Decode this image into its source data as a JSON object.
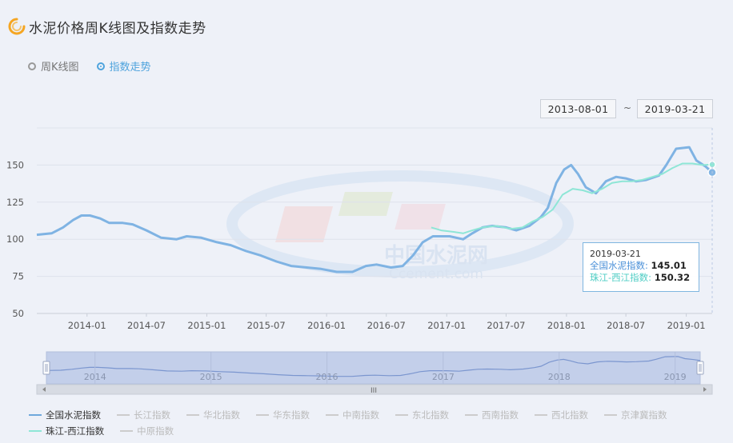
{
  "page": {
    "title": "水泥价格周K线图及指数走势"
  },
  "mode_toggle": {
    "options": [
      {
        "label": "周K线图",
        "selected": false
      },
      {
        "label": "指数走势",
        "selected": true
      }
    ]
  },
  "date_range": {
    "start": "2013-08-01",
    "separator": "~",
    "end": "2019-03-21"
  },
  "watermark": {
    "cn": "中国水泥网",
    "en": "Ccement.com"
  },
  "colors": {
    "national": "#7fb3e3",
    "zhujiang": "#8ee6d6",
    "grid": "#dde2ec",
    "axis_text": "#555555",
    "slider_fill": "#c3cfea",
    "slider_line": "#7b96cf"
  },
  "chart_data": {
    "type": "line",
    "ylim": [
      50,
      175
    ],
    "yticks": [
      50,
      75,
      100,
      125,
      150
    ],
    "xlim": [
      "2013-08-01",
      "2019-03-21"
    ],
    "xticks": [
      "2014-01",
      "2014-07",
      "2015-01",
      "2015-07",
      "2016-01",
      "2016-07",
      "2017-01",
      "2017-07",
      "2018-01",
      "2018-07",
      "2019-01"
    ],
    "series": [
      {
        "name": "全国水泥指数",
        "points": [
          [
            "2013-08-01",
            103
          ],
          [
            "2013-09-15",
            104
          ],
          [
            "2013-10-20",
            108
          ],
          [
            "2013-11-20",
            113
          ],
          [
            "2013-12-15",
            116
          ],
          [
            "2014-01-10",
            116
          ],
          [
            "2014-02-10",
            114
          ],
          [
            "2014-03-10",
            111
          ],
          [
            "2014-04-20",
            111
          ],
          [
            "2014-05-20",
            110
          ],
          [
            "2014-07-01",
            106
          ],
          [
            "2014-08-15",
            101
          ],
          [
            "2014-10-01",
            100
          ],
          [
            "2014-11-01",
            102
          ],
          [
            "2014-12-15",
            101
          ],
          [
            "2015-02-01",
            98
          ],
          [
            "2015-03-15",
            96
          ],
          [
            "2015-05-01",
            92
          ],
          [
            "2015-06-15",
            89
          ],
          [
            "2015-08-01",
            85
          ],
          [
            "2015-09-15",
            82
          ],
          [
            "2015-11-01",
            81
          ],
          [
            "2015-12-15",
            80
          ],
          [
            "2016-02-01",
            78
          ],
          [
            "2016-03-20",
            78
          ],
          [
            "2016-04-30",
            82
          ],
          [
            "2016-06-01",
            83
          ],
          [
            "2016-07-15",
            81
          ],
          [
            "2016-08-20",
            82
          ],
          [
            "2016-09-20",
            89
          ],
          [
            "2016-10-20",
            98
          ],
          [
            "2016-11-20",
            102
          ],
          [
            "2017-01-10",
            102
          ],
          [
            "2017-02-20",
            100
          ],
          [
            "2017-03-20",
            104
          ],
          [
            "2017-04-20",
            108
          ],
          [
            "2017-05-20",
            109
          ],
          [
            "2017-07-01",
            108
          ],
          [
            "2017-08-01",
            106
          ],
          [
            "2017-09-10",
            109
          ],
          [
            "2017-10-15",
            115
          ],
          [
            "2017-11-05",
            121
          ],
          [
            "2017-12-01",
            138
          ],
          [
            "2017-12-25",
            147
          ],
          [
            "2018-01-15",
            150
          ],
          [
            "2018-02-05",
            144
          ],
          [
            "2018-03-01",
            135
          ],
          [
            "2018-04-01",
            131
          ],
          [
            "2018-05-01",
            139
          ],
          [
            "2018-06-01",
            142
          ],
          [
            "2018-07-01",
            141
          ],
          [
            "2018-08-01",
            139
          ],
          [
            "2018-09-01",
            140
          ],
          [
            "2018-10-10",
            143
          ],
          [
            "2018-11-01",
            150
          ],
          [
            "2018-12-01",
            161
          ],
          [
            "2019-01-10",
            162
          ],
          [
            "2019-02-01",
            153
          ],
          [
            "2019-03-01",
            149
          ],
          [
            "2019-03-21",
            145.01
          ]
        ]
      },
      {
        "name": "珠江-西江指数",
        "points": [
          [
            "2016-11-15",
            108
          ],
          [
            "2016-12-15",
            106
          ],
          [
            "2017-01-20",
            105
          ],
          [
            "2017-02-20",
            104
          ],
          [
            "2017-03-20",
            106
          ],
          [
            "2017-04-20",
            108
          ],
          [
            "2017-06-01",
            109
          ],
          [
            "2017-07-15",
            107
          ],
          [
            "2017-08-20",
            108
          ],
          [
            "2017-09-20",
            112
          ],
          [
            "2017-10-20",
            115
          ],
          [
            "2017-11-20",
            120
          ],
          [
            "2017-12-20",
            130
          ],
          [
            "2018-01-20",
            134
          ],
          [
            "2018-02-20",
            133
          ],
          [
            "2018-03-20",
            131
          ],
          [
            "2018-04-20",
            134
          ],
          [
            "2018-05-20",
            138
          ],
          [
            "2018-06-20",
            139
          ],
          [
            "2018-07-20",
            139
          ],
          [
            "2018-08-20",
            140
          ],
          [
            "2018-09-20",
            142
          ],
          [
            "2018-10-20",
            144
          ],
          [
            "2018-11-20",
            148
          ],
          [
            "2018-12-20",
            151
          ],
          [
            "2019-01-20",
            151
          ],
          [
            "2019-02-20",
            150
          ],
          [
            "2019-03-21",
            150.32
          ]
        ]
      }
    ],
    "tooltip": {
      "date": "2019-03-21",
      "rows": [
        {
          "label": "全国水泥指数",
          "value": "145.01"
        },
        {
          "label": "珠江-西江指数",
          "value": "150.32"
        }
      ]
    },
    "slider": {
      "years": [
        "2014",
        "2015",
        "2016",
        "2017",
        "2018",
        "2019"
      ],
      "handle_glyph": "III"
    }
  },
  "legend": {
    "row1": [
      {
        "label": "全国水泥指数",
        "on": true,
        "color": "#6fa8dc"
      },
      {
        "label": "长江指数",
        "on": false,
        "color": "#cccccc"
      },
      {
        "label": "华北指数",
        "on": false,
        "color": "#cccccc"
      },
      {
        "label": "华东指数",
        "on": false,
        "color": "#cccccc"
      },
      {
        "label": "中南指数",
        "on": false,
        "color": "#cccccc"
      },
      {
        "label": "东北指数",
        "on": false,
        "color": "#cccccc"
      },
      {
        "label": "西南指数",
        "on": false,
        "color": "#cccccc"
      },
      {
        "label": "西北指数",
        "on": false,
        "color": "#cccccc"
      },
      {
        "label": "京津冀指数",
        "on": false,
        "color": "#cccccc"
      }
    ],
    "row2": [
      {
        "label": "珠江-西江指数",
        "on": true,
        "color": "#8ee6d6"
      },
      {
        "label": "中原指数",
        "on": false,
        "color": "#cccccc"
      }
    ]
  }
}
